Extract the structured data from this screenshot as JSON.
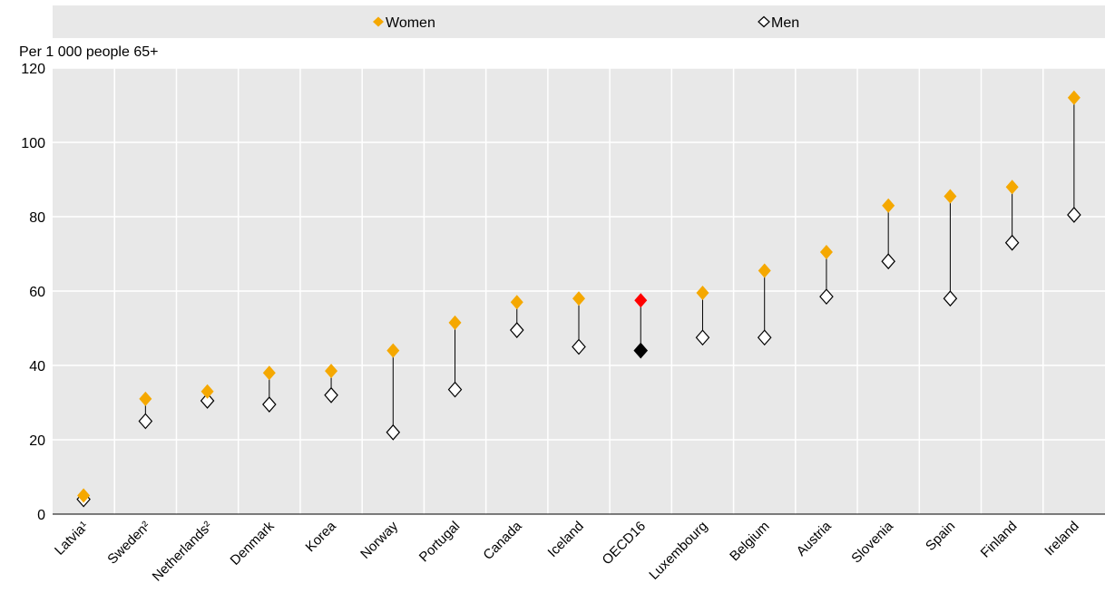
{
  "chart_data": {
    "type": "scatter",
    "ylabel": "Per 1 000 people 65+",
    "ylim": [
      0,
      120
    ],
    "yticks": [
      0,
      20,
      40,
      60,
      80,
      100,
      120
    ],
    "grid": true,
    "legend_position": "top",
    "categories": [
      "Latvia¹",
      "Sweden²",
      "Netherlands²",
      "Denmark",
      "Korea",
      "Norway",
      "Portugal",
      "Canada",
      "Iceland",
      "OECD16",
      "Luxembourg",
      "Belgium",
      "Austria",
      "Slovenia",
      "Spain",
      "Finland",
      "Ireland"
    ],
    "highlight_category": "OECD16",
    "series": [
      {
        "name": "Women",
        "marker": "filled-diamond",
        "color": "#F5A800",
        "highlight_color": "#FF0000",
        "values": [
          5,
          31,
          33,
          38,
          38.5,
          44,
          51.5,
          57,
          58,
          57.5,
          59.5,
          65.5,
          70.5,
          83,
          85.5,
          88,
          112
        ]
      },
      {
        "name": "Men",
        "marker": "hollow-diamond",
        "color": "#000000",
        "highlight_color": "#000000",
        "values": [
          4,
          25,
          30.5,
          29.5,
          32,
          22,
          33.5,
          49.5,
          45,
          44,
          47.5,
          47.5,
          58.5,
          68,
          58,
          73,
          80.5
        ]
      }
    ]
  },
  "colors": {
    "plot_background": "#E8E8E8",
    "gridline": "#FFFFFF",
    "women": "#F5A800",
    "men": "#000000",
    "oecd_women": "#FF0000"
  }
}
